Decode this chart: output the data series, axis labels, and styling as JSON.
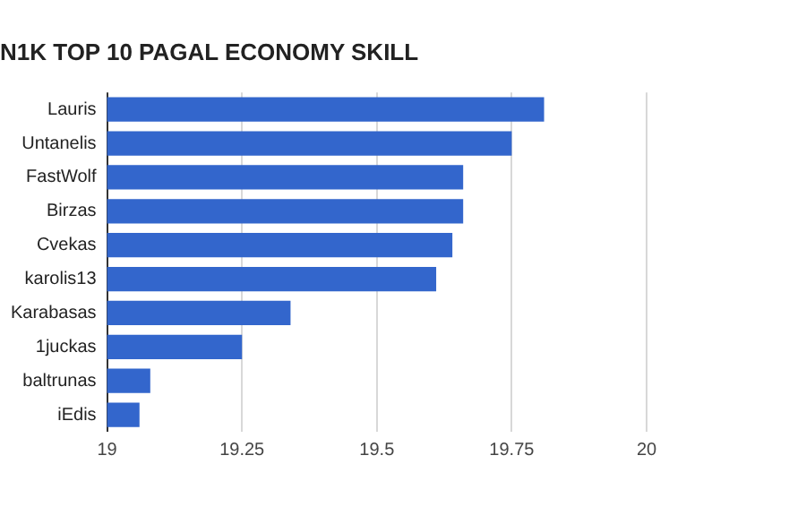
{
  "chart_data": {
    "type": "bar",
    "orientation": "horizontal",
    "title": "N1K TOP 10 PAGAL ECONOMY SKILL",
    "categories": [
      "Lauris",
      "Untanelis",
      "FastWolf",
      "Birzas",
      "Cvekas",
      "karolis13",
      "Karabasas",
      "1juckas",
      "baltrunas",
      "iEdis"
    ],
    "values": [
      19.81,
      19.75,
      19.66,
      19.66,
      19.64,
      19.61,
      19.34,
      19.25,
      19.08,
      19.06
    ],
    "color": "#3366cc",
    "xlim": [
      19,
      20
    ],
    "xticks": [
      19,
      19.25,
      19.5,
      19.75,
      20
    ],
    "grid": "x"
  }
}
